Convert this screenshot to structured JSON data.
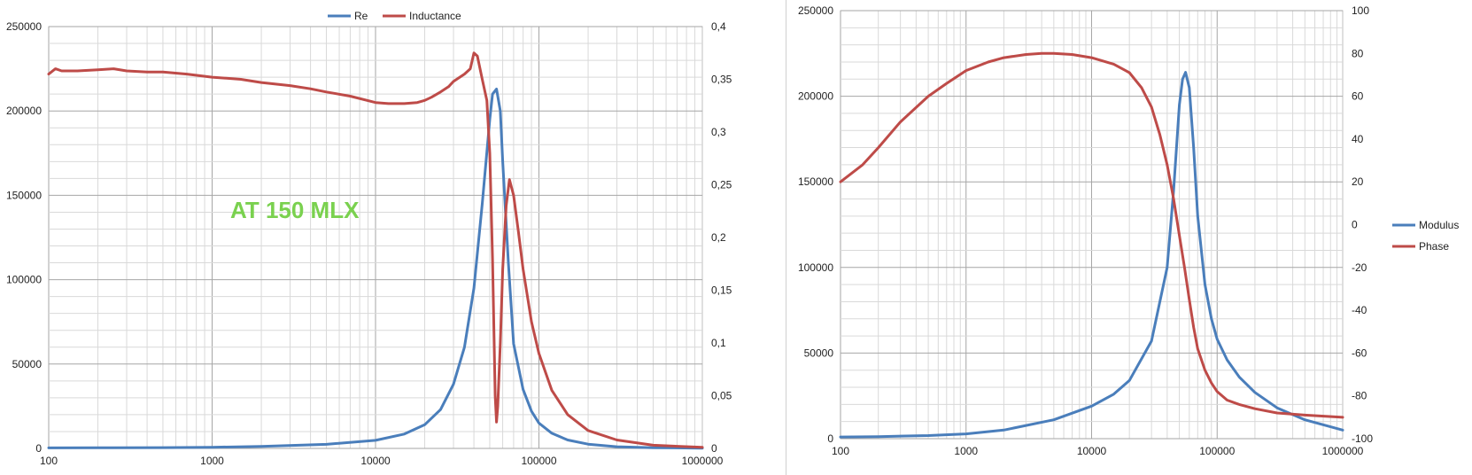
{
  "chart_data": [
    {
      "type": "line",
      "x_scale": "log",
      "title": "",
      "xlabel": "",
      "ylabel": "",
      "y2label": "",
      "xlim": [
        100,
        1000000
      ],
      "ylim": [
        0,
        250000
      ],
      "y2lim": [
        0,
        0.4
      ],
      "x_ticks": [
        "100",
        "1000",
        "10000",
        "100000",
        "1000000"
      ],
      "y_ticks": [
        "0",
        "50000",
        "100000",
        "150000",
        "200000",
        "250000"
      ],
      "y2_ticks": [
        "0",
        "0,05",
        "0,1",
        "0,15",
        "0,2",
        "0,25",
        "0,3",
        "0,35",
        "0,4"
      ],
      "grid": true,
      "legend_position": "top",
      "annotation": "AT 150 MLX",
      "colors": {
        "Re": "#4a7ebb",
        "Inductance": "#be4b48"
      },
      "series": [
        {
          "name": "Re",
          "axis": "left",
          "x": [
            100,
            200,
            500,
            1000,
            2000,
            5000,
            10000,
            15000,
            20000,
            25000,
            30000,
            35000,
            40000,
            45000,
            50000,
            52000,
            55000,
            58000,
            60000,
            65000,
            70000,
            80000,
            90000,
            100000,
            120000,
            150000,
            200000,
            300000,
            500000,
            1000000
          ],
          "values": [
            300,
            350,
            450,
            700,
            1200,
            2400,
            4800,
            8500,
            14000,
            23000,
            38000,
            60000,
            95000,
            145000,
            195000,
            210000,
            213000,
            200000,
            170000,
            110000,
            62000,
            35000,
            22000,
            15000,
            9000,
            5000,
            2500,
            1000,
            400,
            150
          ]
        },
        {
          "name": "Inductance",
          "axis": "right",
          "x": [
            100,
            110,
            120,
            150,
            200,
            250,
            300,
            400,
            500,
            700,
            1000,
            1500,
            2000,
            3000,
            4000,
            5000,
            7000,
            10000,
            12000,
            15000,
            18000,
            20000,
            22000,
            25000,
            28000,
            30000,
            35000,
            38000,
            40000,
            42000,
            45000,
            48000,
            50000,
            52000,
            54000,
            55000,
            56000,
            58000,
            60000,
            63000,
            66000,
            70000,
            75000,
            80000,
            90000,
            100000,
            120000,
            150000,
            200000,
            300000,
            500000,
            1000000
          ],
          "values": [
            0.355,
            0.36,
            0.358,
            0.358,
            0.359,
            0.36,
            0.358,
            0.357,
            0.357,
            0.355,
            0.352,
            0.35,
            0.347,
            0.344,
            0.341,
            0.338,
            0.334,
            0.328,
            0.327,
            0.327,
            0.328,
            0.33,
            0.333,
            0.338,
            0.343,
            0.348,
            0.355,
            0.36,
            0.375,
            0.372,
            0.35,
            0.33,
            0.28,
            0.18,
            0.05,
            0.025,
            0.04,
            0.1,
            0.17,
            0.23,
            0.255,
            0.24,
            0.205,
            0.17,
            0.12,
            0.09,
            0.055,
            0.032,
            0.017,
            0.008,
            0.003,
            0.001
          ]
        }
      ]
    },
    {
      "type": "line",
      "x_scale": "log",
      "title": "",
      "xlabel": "",
      "ylabel": "",
      "y2label": "",
      "xlim": [
        100,
        1000000
      ],
      "ylim": [
        0,
        250000
      ],
      "y2lim": [
        -100,
        100
      ],
      "x_ticks": [
        "100",
        "1000",
        "10000",
        "100000",
        "1000000"
      ],
      "y_ticks": [
        "0",
        "50000",
        "100000",
        "150000",
        "200000",
        "250000"
      ],
      "y2_ticks": [
        "-100",
        "-80",
        "-60",
        "-40",
        "-20",
        "0",
        "20",
        "40",
        "60",
        "80",
        "100"
      ],
      "grid": true,
      "legend_position": "right",
      "colors": {
        "Modulus": "#4a7ebb",
        "Phase": "#be4b48"
      },
      "series": [
        {
          "name": "Modulus",
          "axis": "left",
          "x": [
            100,
            200,
            500,
            1000,
            2000,
            5000,
            10000,
            15000,
            20000,
            30000,
            40000,
            45000,
            50000,
            53000,
            56000,
            60000,
            65000,
            70000,
            80000,
            90000,
            100000,
            120000,
            150000,
            200000,
            300000,
            500000,
            1000000
          ],
          "values": [
            1000,
            1200,
            1800,
            2800,
            5000,
            11000,
            19000,
            26000,
            34000,
            57000,
            100000,
            145000,
            195000,
            210000,
            214000,
            205000,
            170000,
            130000,
            90000,
            70000,
            58000,
            46000,
            36000,
            27000,
            18000,
            11000,
            5000
          ]
        },
        {
          "name": "Phase",
          "axis": "right",
          "x": [
            100,
            150,
            200,
            300,
            500,
            700,
            1000,
            1500,
            2000,
            3000,
            4000,
            5000,
            7000,
            10000,
            15000,
            20000,
            25000,
            30000,
            35000,
            40000,
            45000,
            50000,
            55000,
            60000,
            65000,
            70000,
            80000,
            90000,
            100000,
            120000,
            150000,
            200000,
            300000,
            500000,
            1000000
          ],
          "values": [
            20,
            28,
            36,
            48,
            60,
            66,
            72,
            76,
            78,
            79.5,
            80,
            80,
            79.5,
            78,
            75,
            71,
            64,
            55,
            42,
            28,
            12,
            -5,
            -20,
            -35,
            -48,
            -58,
            -68,
            -74,
            -78,
            -82,
            -84,
            -86,
            -88,
            -89,
            -90
          ]
        }
      ]
    }
  ]
}
